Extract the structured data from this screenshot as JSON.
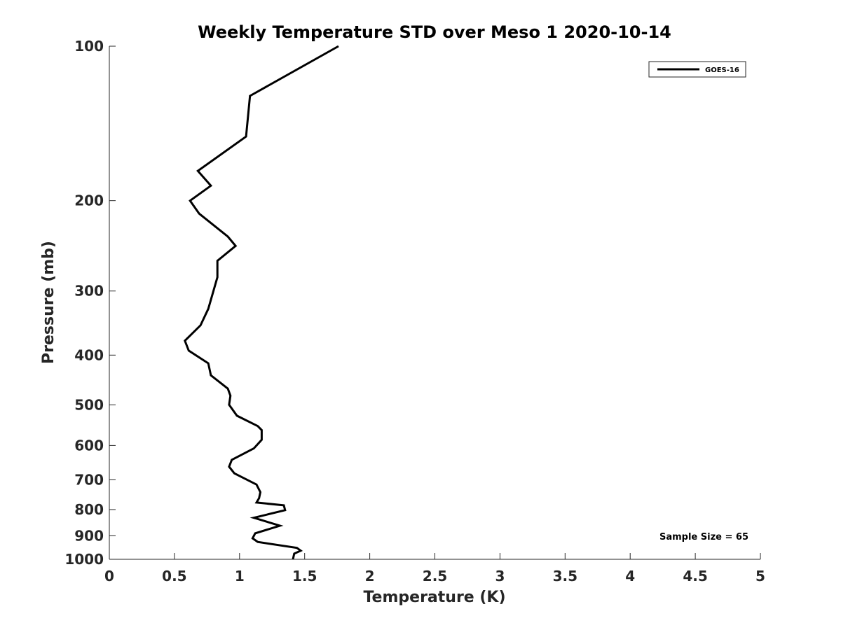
{
  "chart_data": {
    "type": "line",
    "title": "Weekly Temperature STD over Meso 1 2020-10-14",
    "xlabel": "Temperature (K)",
    "ylabel": "Pressure (mb)",
    "xlim": [
      0,
      5
    ],
    "ylim": [
      100,
      1000
    ],
    "y_scale": "log",
    "y_reversed": true,
    "x_ticks": [
      0,
      0.5,
      1,
      1.5,
      2,
      2.5,
      3,
      3.5,
      4,
      4.5,
      5
    ],
    "x_tick_labels": [
      "0",
      "0.5",
      "1",
      "1.5",
      "2",
      "2.5",
      "3",
      "3.5",
      "4",
      "4.5",
      "5"
    ],
    "y_ticks": [
      100,
      200,
      300,
      400,
      500,
      600,
      700,
      800,
      900,
      1000
    ],
    "y_tick_labels": [
      "100",
      "200",
      "300",
      "400",
      "500",
      "600",
      "700",
      "800",
      "900",
      "1000"
    ],
    "grid": false,
    "legend_position": "top-right",
    "line_color": "#000000",
    "annotation": "Sample Size = 65",
    "series": [
      {
        "name": "GOES-16",
        "x": [
          1.76,
          1.08,
          1.05,
          0.68,
          0.78,
          0.62,
          0.69,
          0.91,
          0.97,
          0.83,
          0.83,
          0.76,
          0.7,
          0.58,
          0.61,
          0.76,
          0.78,
          0.91,
          0.93,
          0.92,
          0.98,
          1.14,
          1.17,
          1.17,
          1.11,
          0.94,
          0.92,
          0.96,
          1.13,
          1.16,
          1.15,
          1.13,
          1.34,
          1.35,
          1.11,
          1.31,
          1.12,
          1.1,
          1.14,
          1.44,
          1.47,
          1.42,
          1.41
        ],
        "y": [
          100,
          125,
          150,
          175,
          187,
          200,
          212,
          235,
          245,
          262,
          282,
          325,
          350,
          375,
          392,
          415,
          438,
          465,
          480,
          500,
          525,
          550,
          560,
          585,
          608,
          640,
          660,
          680,
          715,
          740,
          760,
          775,
          785,
          802,
          830,
          860,
          890,
          910,
          925,
          950,
          962,
          975,
          1000
        ]
      }
    ]
  }
}
